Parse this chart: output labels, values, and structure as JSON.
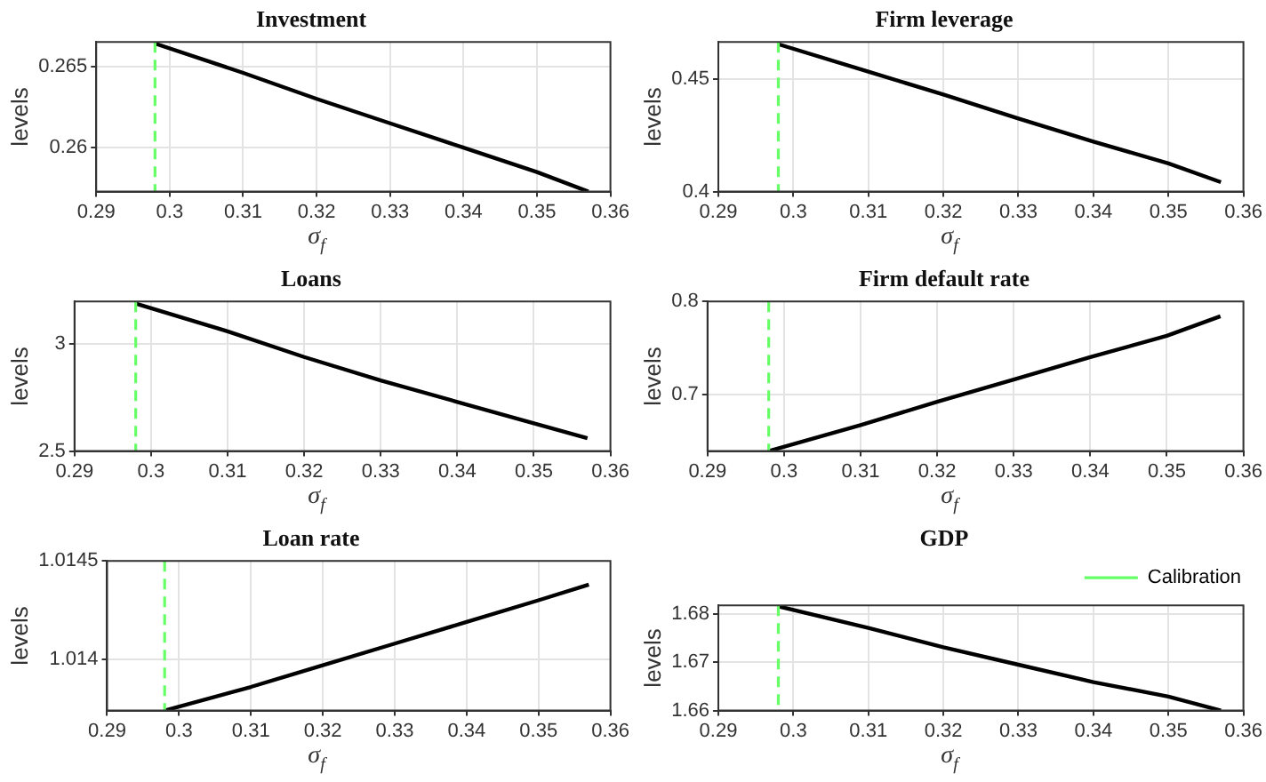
{
  "chart_data": [
    {
      "type": "line",
      "title": "Investment",
      "xlabel": "σ$_{f}$",
      "ylabel": "levels",
      "x": [
        0.298,
        0.31,
        0.32,
        0.33,
        0.34,
        0.35,
        0.357
      ],
      "series": [
        {
          "color": "#000000",
          "values": [
            0.2664,
            0.2646,
            0.263,
            0.2615,
            0.26,
            0.2585,
            0.2573
          ]
        }
      ],
      "xlim": [
        0.29,
        0.36
      ],
      "xticks": [
        0.29,
        0.3,
        0.31,
        0.32,
        0.33,
        0.34,
        0.35,
        0.36
      ],
      "ylim": [
        0.2573,
        0.2665
      ],
      "yticks": [
        0.26,
        0.265
      ],
      "grid": true,
      "marker": "none",
      "line_style": "solid",
      "ref_lines": [
        {
          "axis": "x",
          "value": 0.298,
          "color": "#66ff66",
          "line_style": "dashed"
        }
      ]
    },
    {
      "type": "line",
      "title": "Firm leverage",
      "xlabel": "σ$_{f}$",
      "ylabel": "levels",
      "x": [
        0.298,
        0.31,
        0.32,
        0.33,
        0.34,
        0.35,
        0.357
      ],
      "series": [
        {
          "color": "#000000",
          "values": [
            0.4655,
            0.4533,
            0.4431,
            0.4325,
            0.4222,
            0.4125,
            0.4042
          ]
        }
      ],
      "xlim": [
        0.29,
        0.36
      ],
      "xticks": [
        0.29,
        0.3,
        0.31,
        0.32,
        0.33,
        0.34,
        0.35,
        0.36
      ],
      "ylim": [
        0.4,
        0.4665
      ],
      "yticks": [
        0.4,
        0.45
      ],
      "grid": true,
      "marker": "none",
      "line_style": "solid",
      "ref_lines": [
        {
          "axis": "x",
          "value": 0.298,
          "color": "#66ff66",
          "line_style": "dashed"
        }
      ]
    },
    {
      "type": "line",
      "title": "Loans",
      "xlabel": "σ$_{f}$",
      "ylabel": "levels",
      "x": [
        0.298,
        0.31,
        0.32,
        0.33,
        0.34,
        0.35,
        0.357
      ],
      "series": [
        {
          "color": "#000000",
          "values": [
            3.19,
            3.06,
            2.94,
            2.83,
            2.73,
            2.63,
            2.56
          ]
        }
      ],
      "xlim": [
        0.29,
        0.36
      ],
      "xticks": [
        0.29,
        0.3,
        0.31,
        0.32,
        0.33,
        0.34,
        0.35,
        0.36
      ],
      "ylim": [
        2.5,
        3.2
      ],
      "yticks": [
        2.5,
        3
      ],
      "grid": true,
      "marker": "none",
      "line_style": "solid",
      "ref_lines": [
        {
          "axis": "x",
          "value": 0.298,
          "color": "#66ff66",
          "line_style": "dashed"
        }
      ]
    },
    {
      "type": "line",
      "title": "Firm default rate",
      "xlabel": "σ$_{f}$",
      "ylabel": "levels",
      "x": [
        0.298,
        0.31,
        0.32,
        0.33,
        0.34,
        0.35,
        0.357
      ],
      "series": [
        {
          "color": "#000000",
          "values": [
            0.639,
            0.667,
            0.692,
            0.716,
            0.74,
            0.763,
            0.784
          ]
        }
      ],
      "xlim": [
        0.29,
        0.36
      ],
      "xticks": [
        0.29,
        0.3,
        0.31,
        0.32,
        0.33,
        0.34,
        0.35,
        0.36
      ],
      "ylim": [
        0.639,
        0.8
      ],
      "yticks": [
        0.7,
        0.8
      ],
      "grid": true,
      "marker": "none",
      "line_style": "solid",
      "ref_lines": [
        {
          "axis": "x",
          "value": 0.298,
          "color": "#66ff66",
          "line_style": "dashed"
        }
      ]
    },
    {
      "type": "line",
      "title": "Loan rate",
      "xlabel": "σ$_{f}$",
      "ylabel": "levels",
      "x": [
        0.298,
        0.31,
        0.32,
        0.33,
        0.34,
        0.35,
        0.357
      ],
      "series": [
        {
          "color": "#000000",
          "values": [
            1.01374,
            1.01386,
            1.01397,
            1.01408,
            1.01419,
            1.0143,
            1.01438
          ]
        }
      ],
      "xlim": [
        0.29,
        0.36
      ],
      "xticks": [
        0.29,
        0.3,
        0.31,
        0.32,
        0.33,
        0.34,
        0.35,
        0.36
      ],
      "ylim": [
        1.01374,
        1.0145
      ],
      "yticks": [
        1.014,
        1.0145
      ],
      "grid": true,
      "marker": "none",
      "line_style": "solid",
      "ref_lines": [
        {
          "axis": "x",
          "value": 0.298,
          "color": "#66ff66",
          "line_style": "dashed"
        }
      ]
    },
    {
      "type": "line",
      "title": "GDP",
      "xlabel": "σ$_{f}$",
      "ylabel": "levels",
      "x": [
        0.298,
        0.31,
        0.32,
        0.33,
        0.34,
        0.35,
        0.357
      ],
      "series": [
        {
          "color": "#000000",
          "values": [
            1.6816,
            1.6771,
            1.6731,
            1.6695,
            1.6659,
            1.6629,
            1.66
          ]
        }
      ],
      "xlim": [
        0.29,
        0.36
      ],
      "xticks": [
        0.29,
        0.3,
        0.31,
        0.32,
        0.33,
        0.34,
        0.35,
        0.36
      ],
      "ylim": [
        1.66,
        1.6818
      ],
      "yticks": [
        1.66,
        1.67,
        1.68
      ],
      "grid": true,
      "marker": "none",
      "line_style": "solid",
      "legend": "top right",
      "ref_lines": [
        {
          "axis": "x",
          "value": 0.298,
          "color": "#66ff66",
          "line_style": "dashed",
          "label": "Calibration"
        }
      ]
    }
  ]
}
